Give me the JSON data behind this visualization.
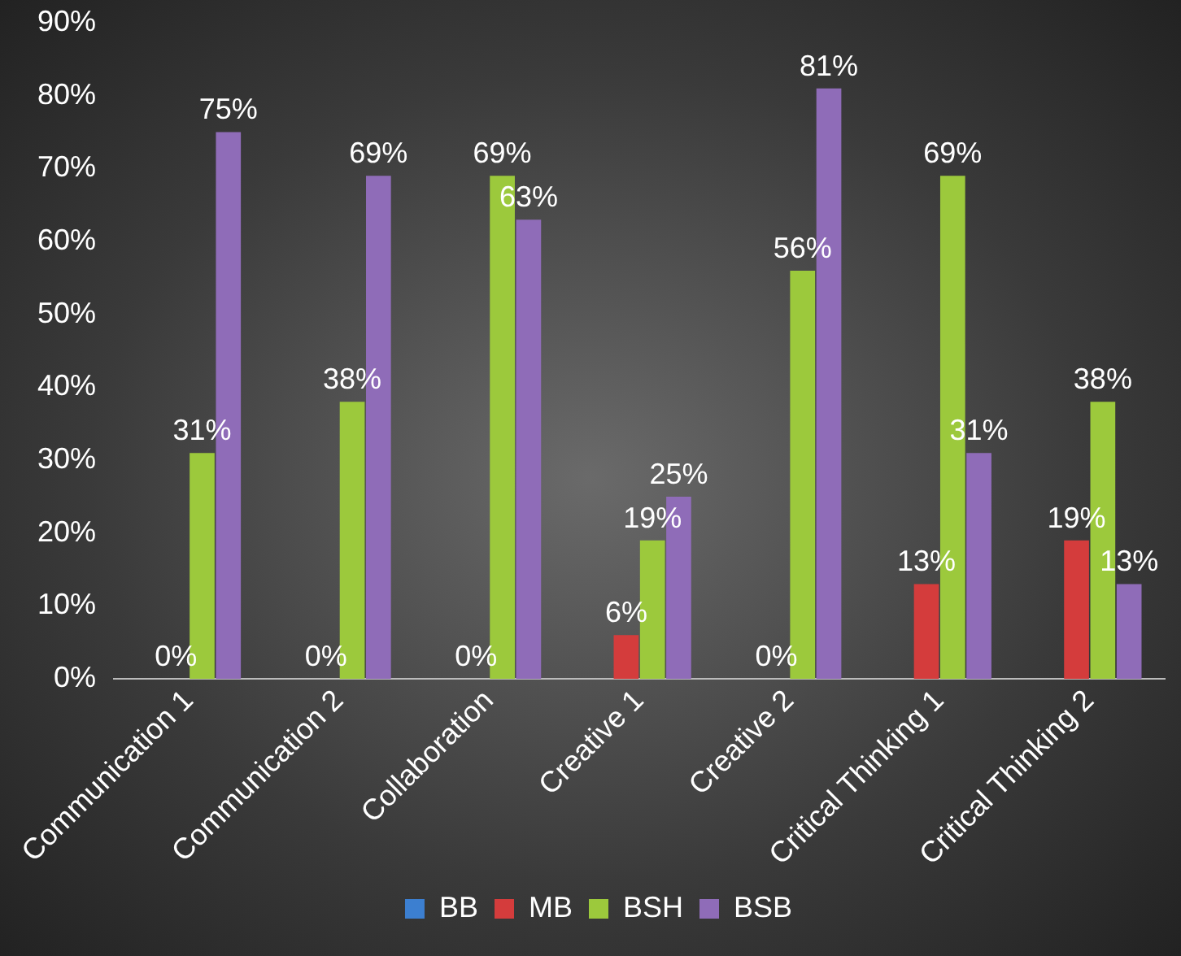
{
  "chart_data": {
    "type": "bar",
    "categories": [
      "Communication 1",
      "Communication 2",
      "Collaboration",
      "Creative 1",
      "Creative 2",
      "Critical Thinking 1",
      "Critical Thinking 2"
    ],
    "series": [
      {
        "name": "BB",
        "color": "#3c7fd0",
        "values": [
          null,
          null,
          null,
          null,
          null,
          null,
          null
        ]
      },
      {
        "name": "MB",
        "color": "#d43c3c",
        "values": [
          0,
          0,
          0,
          6,
          0,
          13,
          19
        ],
        "value_labels": [
          "0%",
          "0%",
          "0%",
          "6%",
          "0%",
          "13%",
          "19%"
        ]
      },
      {
        "name": "BSH",
        "color": "#9cc93c",
        "values": [
          31,
          38,
          69,
          19,
          56,
          69,
          38
        ],
        "value_labels": [
          "31%",
          "38%",
          "69%",
          "19%",
          "56%",
          "69%",
          "38%"
        ]
      },
      {
        "name": "BSB",
        "color": "#8f6cb8",
        "values": [
          75,
          69,
          63,
          25,
          81,
          31,
          13
        ],
        "value_labels": [
          "75%",
          "69%",
          "63%",
          "25%",
          "81%",
          "31%",
          "13%"
        ]
      }
    ],
    "ylim": [
      0,
      90
    ],
    "yticks": [
      {
        "value": 0,
        "label": "0%"
      },
      {
        "value": 10,
        "label": "10%"
      },
      {
        "value": 20,
        "label": "20%"
      },
      {
        "value": 30,
        "label": "30%"
      },
      {
        "value": 40,
        "label": "40%"
      },
      {
        "value": 50,
        "label": "50%"
      },
      {
        "value": 60,
        "label": "60%"
      },
      {
        "value": 70,
        "label": "70%"
      },
      {
        "value": 80,
        "label": "80%"
      },
      {
        "value": 90,
        "label": "90%"
      }
    ],
    "grid": false,
    "legend": "bottom"
  }
}
